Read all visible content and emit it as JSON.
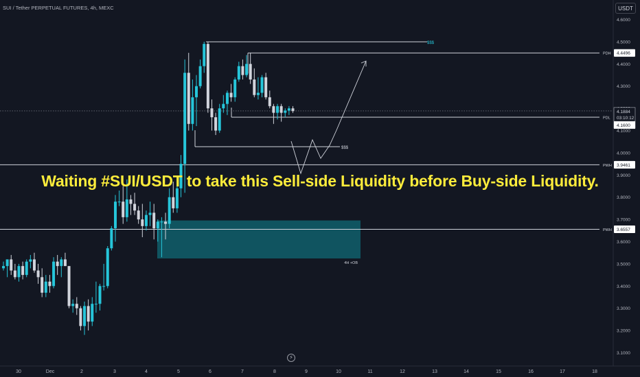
{
  "header": {
    "symbol_title": "SUI / Tether PERPETUAL FUTURES, 4h, MEXC",
    "currency_button": "USDT"
  },
  "headline": "Waiting #SUI/USDT to take this Sell-side Liquidity before Buy-side Liquidity.",
  "colors": {
    "background": "#131722",
    "bull": "#26c6da",
    "bear": "#d1d4dc",
    "headline": "#fcec3b",
    "order_block": "#115f6b",
    "buy_liquidity_label": "#26c6da"
  },
  "chart_data": {
    "type": "candlestick",
    "x_ticks": [
      "30",
      "Dec",
      "2",
      "3",
      "4",
      "5",
      "6",
      "7",
      "8",
      "9",
      "10",
      "11",
      "12",
      "13",
      "14",
      "15",
      "16",
      "17",
      "18"
    ],
    "y_ticks": [
      "4.6000",
      "4.5000",
      "4.4000",
      "4.3000",
      "4.2000",
      "4.1000",
      "4.0000",
      "3.9000",
      "3.8000",
      "3.7000",
      "3.6000",
      "3.5000",
      "3.4000",
      "3.3000",
      "3.2000",
      "3.1000"
    ],
    "ylim": [
      3.08,
      4.62
    ],
    "levels": [
      {
        "label": "PDH",
        "value": "4.4496"
      },
      {
        "label": "PDL",
        "value": "4.1600"
      },
      {
        "label": "PWH",
        "value": "3.9461"
      },
      {
        "label": "PWH",
        "value": "3.6557"
      }
    ],
    "last_price": {
      "value": "4.1884",
      "countdown": "03:10:12"
    },
    "annotations": {
      "buy_side_liquidity": "$$$",
      "sell_side_liquidity": "$$$",
      "order_block": "4H +OB"
    },
    "order_block_range": [
      3.5242,
      3.6953
    ],
    "candles": [
      {
        "o": 3.48,
        "h": 3.51,
        "l": 3.47,
        "c": 3.49
      },
      {
        "o": 3.49,
        "h": 3.52,
        "l": 3.44,
        "c": 3.52
      },
      {
        "o": 3.52,
        "h": 3.54,
        "l": 3.45,
        "c": 3.47
      },
      {
        "o": 3.47,
        "h": 3.5,
        "l": 3.43,
        "c": 3.44
      },
      {
        "o": 3.44,
        "h": 3.5,
        "l": 3.42,
        "c": 3.49
      },
      {
        "o": 3.49,
        "h": 3.51,
        "l": 3.43,
        "c": 3.45
      },
      {
        "o": 3.45,
        "h": 3.52,
        "l": 3.44,
        "c": 3.51
      },
      {
        "o": 3.51,
        "h": 3.54,
        "l": 3.48,
        "c": 3.52
      },
      {
        "o": 3.52,
        "h": 3.55,
        "l": 3.46,
        "c": 3.47
      },
      {
        "o": 3.47,
        "h": 3.5,
        "l": 3.41,
        "c": 3.44
      },
      {
        "o": 3.44,
        "h": 3.48,
        "l": 3.35,
        "c": 3.37
      },
      {
        "o": 3.37,
        "h": 3.45,
        "l": 3.35,
        "c": 3.42
      },
      {
        "o": 3.42,
        "h": 3.45,
        "l": 3.37,
        "c": 3.4
      },
      {
        "o": 3.4,
        "h": 3.53,
        "l": 3.39,
        "c": 3.51
      },
      {
        "o": 3.51,
        "h": 3.54,
        "l": 3.45,
        "c": 3.49
      },
      {
        "o": 3.49,
        "h": 3.53,
        "l": 3.44,
        "c": 3.52
      },
      {
        "o": 3.52,
        "h": 3.55,
        "l": 3.49,
        "c": 3.49
      },
      {
        "o": 3.49,
        "h": 3.49,
        "l": 3.3,
        "c": 3.31
      },
      {
        "o": 3.31,
        "h": 3.34,
        "l": 3.28,
        "c": 3.32
      },
      {
        "o": 3.32,
        "h": 3.35,
        "l": 3.27,
        "c": 3.3
      },
      {
        "o": 3.3,
        "h": 3.31,
        "l": 3.2,
        "c": 3.22
      },
      {
        "o": 3.22,
        "h": 3.33,
        "l": 3.18,
        "c": 3.31
      },
      {
        "o": 3.31,
        "h": 3.34,
        "l": 3.2,
        "c": 3.24
      },
      {
        "o": 3.24,
        "h": 3.35,
        "l": 3.22,
        "c": 3.32
      },
      {
        "o": 3.32,
        "h": 3.42,
        "l": 3.28,
        "c": 3.32
      },
      {
        "o": 3.32,
        "h": 3.41,
        "l": 3.29,
        "c": 3.4
      },
      {
        "o": 3.4,
        "h": 3.5,
        "l": 3.38,
        "c": 3.4
      },
      {
        "o": 3.4,
        "h": 3.58,
        "l": 3.39,
        "c": 3.57
      },
      {
        "o": 3.57,
        "h": 3.67,
        "l": 3.56,
        "c": 3.66
      },
      {
        "o": 3.66,
        "h": 3.81,
        "l": 3.6,
        "c": 3.78
      },
      {
        "o": 3.78,
        "h": 3.83,
        "l": 3.76,
        "c": 3.78
      },
      {
        "o": 3.78,
        "h": 3.85,
        "l": 3.68,
        "c": 3.71
      },
      {
        "o": 3.71,
        "h": 3.88,
        "l": 3.69,
        "c": 3.79
      },
      {
        "o": 3.79,
        "h": 3.81,
        "l": 3.72,
        "c": 3.77
      },
      {
        "o": 3.77,
        "h": 3.82,
        "l": 3.72,
        "c": 3.74
      },
      {
        "o": 3.74,
        "h": 3.76,
        "l": 3.68,
        "c": 3.7
      },
      {
        "o": 3.7,
        "h": 3.77,
        "l": 3.62,
        "c": 3.67
      },
      {
        "o": 3.67,
        "h": 3.74,
        "l": 3.65,
        "c": 3.72
      },
      {
        "o": 3.72,
        "h": 3.78,
        "l": 3.67,
        "c": 3.73
      },
      {
        "o": 3.73,
        "h": 3.77,
        "l": 3.61,
        "c": 3.66
      },
      {
        "o": 3.66,
        "h": 3.7,
        "l": 3.6,
        "c": 3.69
      },
      {
        "o": 3.69,
        "h": 3.71,
        "l": 3.53,
        "c": 3.69
      },
      {
        "o": 3.69,
        "h": 3.73,
        "l": 3.61,
        "c": 3.68
      },
      {
        "o": 3.68,
        "h": 3.84,
        "l": 3.66,
        "c": 3.8
      },
      {
        "o": 3.8,
        "h": 3.87,
        "l": 3.73,
        "c": 3.75
      },
      {
        "o": 3.75,
        "h": 3.86,
        "l": 3.73,
        "c": 3.84
      },
      {
        "o": 3.84,
        "h": 3.99,
        "l": 3.8,
        "c": 3.95
      },
      {
        "o": 3.95,
        "h": 4.42,
        "l": 3.82,
        "c": 4.36
      },
      {
        "o": 4.36,
        "h": 4.45,
        "l": 4.1,
        "c": 4.13
      },
      {
        "o": 4.13,
        "h": 4.33,
        "l": 4.1,
        "c": 4.25
      },
      {
        "o": 4.25,
        "h": 4.35,
        "l": 4.12,
        "c": 4.3
      },
      {
        "o": 4.3,
        "h": 4.42,
        "l": 4.29,
        "c": 4.39
      },
      {
        "o": 4.39,
        "h": 4.5,
        "l": 4.36,
        "c": 4.49
      },
      {
        "o": 4.49,
        "h": 4.5,
        "l": 4.18,
        "c": 4.2
      },
      {
        "o": 4.2,
        "h": 4.24,
        "l": 4.1,
        "c": 4.16
      },
      {
        "o": 4.16,
        "h": 4.18,
        "l": 4.08,
        "c": 4.1
      },
      {
        "o": 4.1,
        "h": 4.22,
        "l": 4.09,
        "c": 4.2
      },
      {
        "o": 4.2,
        "h": 4.26,
        "l": 4.18,
        "c": 4.22
      },
      {
        "o": 4.22,
        "h": 4.28,
        "l": 4.17,
        "c": 4.27
      },
      {
        "o": 4.27,
        "h": 4.31,
        "l": 4.23,
        "c": 4.25
      },
      {
        "o": 4.25,
        "h": 4.34,
        "l": 4.23,
        "c": 4.33
      },
      {
        "o": 4.33,
        "h": 4.41,
        "l": 4.32,
        "c": 4.39
      },
      {
        "o": 4.39,
        "h": 4.42,
        "l": 4.33,
        "c": 4.35
      },
      {
        "o": 4.35,
        "h": 4.44,
        "l": 4.34,
        "c": 4.4
      },
      {
        "o": 4.4,
        "h": 4.45,
        "l": 4.31,
        "c": 4.33
      },
      {
        "o": 4.33,
        "h": 4.38,
        "l": 4.25,
        "c": 4.26
      },
      {
        "o": 4.26,
        "h": 4.34,
        "l": 4.24,
        "c": 4.27
      },
      {
        "o": 4.27,
        "h": 4.35,
        "l": 4.25,
        "c": 4.34
      },
      {
        "o": 4.34,
        "h": 4.36,
        "l": 4.24,
        "c": 4.25
      },
      {
        "o": 4.25,
        "h": 4.28,
        "l": 4.2,
        "c": 4.21
      },
      {
        "o": 4.21,
        "h": 4.22,
        "l": 4.13,
        "c": 4.18
      },
      {
        "o": 4.18,
        "h": 4.22,
        "l": 4.15,
        "c": 4.21
      },
      {
        "o": 4.21,
        "h": 4.22,
        "l": 4.14,
        "c": 4.18
      },
      {
        "o": 4.18,
        "h": 4.2,
        "l": 4.16,
        "c": 4.19
      },
      {
        "o": 4.19,
        "h": 4.21,
        "l": 4.17,
        "c": 4.2
      },
      {
        "o": 4.2,
        "h": 4.21,
        "l": 4.18,
        "c": 4.1884
      }
    ]
  }
}
